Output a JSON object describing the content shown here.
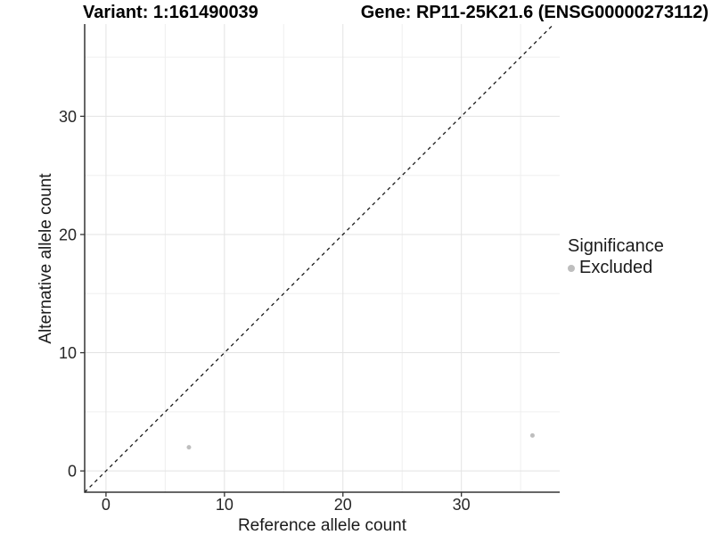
{
  "titles": {
    "left": "Variant: 1:161490039",
    "right": "Gene: RP11-25K21.6 (ENSG00000273112)"
  },
  "legend": {
    "title": "Significance",
    "items": [
      {
        "label": "Excluded",
        "color": "#BEBEBE"
      }
    ]
  },
  "colors": {
    "point": "#BEBEBE",
    "grid_major": "#E3E3E3",
    "grid_minor": "#EFEFEF",
    "axis_line": "#333333",
    "tick_mark": "#333333",
    "identity_line": "#1A1A1A"
  },
  "chart_data": {
    "type": "scatter",
    "xlabel": "Reference allele count",
    "ylabel": "Alternative allele count",
    "xlim": [
      -1.8,
      38.3
    ],
    "ylim": [
      -1.8,
      37.8
    ],
    "x_ticks": [
      0,
      10,
      20,
      30
    ],
    "y_ticks": [
      0,
      10,
      20,
      30
    ],
    "x_minor_gridlines": [
      5,
      15,
      25,
      35
    ],
    "y_minor_gridlines": [
      5,
      15,
      25,
      35
    ],
    "grid": true,
    "identity_line": {
      "show": true,
      "style": "dashed",
      "from": -1.8,
      "to": 37.8
    },
    "legend_position": "right",
    "series": [
      {
        "name": "Excluded",
        "color": "#BEBEBE",
        "points": [
          [
            7,
            2
          ],
          [
            36,
            3
          ]
        ]
      }
    ]
  }
}
